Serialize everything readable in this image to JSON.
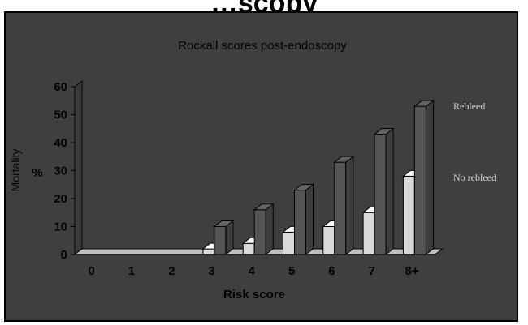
{
  "page": {
    "title": "…scopy"
  },
  "chart_data": {
    "type": "bar",
    "title": "Rockall scores post-endoscopy",
    "xlabel": "Risk score",
    "ylabel": "Mortality",
    "ylabel_unit": "%",
    "categories": [
      "0",
      "1",
      "2",
      "3",
      "4",
      "5",
      "6",
      "7",
      "8+"
    ],
    "series": [
      {
        "name": "No rebleed",
        "values": [
          0,
          0,
          0,
          2,
          4,
          8,
          10,
          15,
          28
        ]
      },
      {
        "name": "Rebleed",
        "values": [
          0,
          0,
          0,
          10,
          16,
          23,
          33,
          43,
          53
        ]
      }
    ],
    "ylim": [
      0,
      60
    ],
    "yticks": [
      0,
      10,
      20,
      30,
      40,
      50,
      60
    ],
    "grid": false,
    "legend_placement": "right",
    "colors": {
      "background": "#3f3f3f",
      "no_rebleed": "#d9d9d9",
      "rebleed": "#555555",
      "text": "#000000",
      "legend_text": "#d0d0d0"
    }
  }
}
